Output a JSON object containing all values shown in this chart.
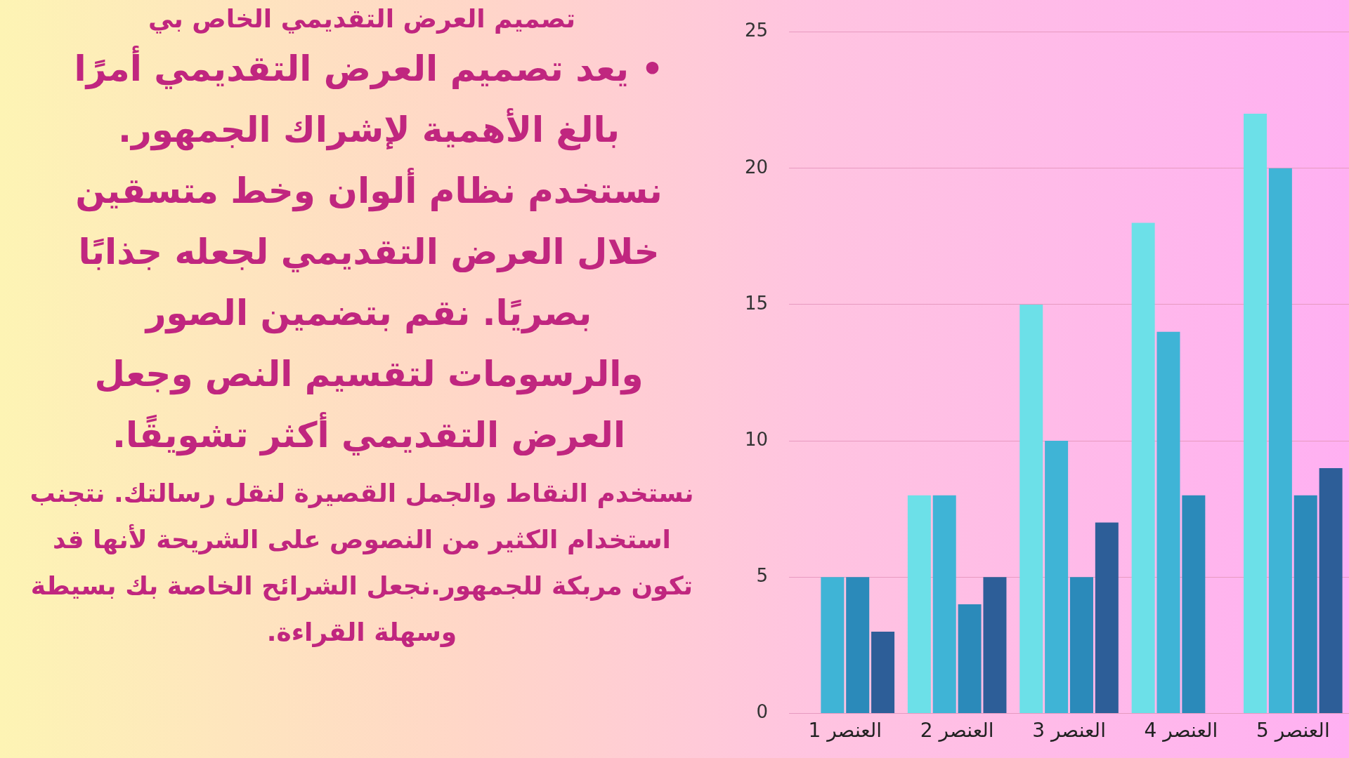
{
  "chart_data": {
    "type": "bar",
    "title": "تصميم العرض التقديمي الخاص بي",
    "annotations": [
      "• يعد تصميم العرض التقديمي أمرًا بالغ الأهمية لإشراك الجمهور. نستخدم نظام ألوان وخط متسقين خلال العرض التقديمي لجعله جذابًا بصريًا. نقم بتضمين الصور والرسومات لتقسيم النص وجعل العرض التقديمي أكثر تشويقًا.",
      "نستخدم النقاط والجمل القصيرة لنقل رسالتك. نتجنب استخدام الكثير من النصوص على الشريحة لأنها قد تكون مربكة للجمهور.نجعل الشرائح الخاصة بك بسيطة وسهلة القراءة."
    ],
    "categories": [
      "العنصر 1",
      "العنصر 2",
      "العنصر 3",
      "العنصر 4",
      "العنصر 5"
    ],
    "series": [
      {
        "color": "#6ce0e8",
        "values": [
          null,
          8,
          15,
          18,
          22
        ]
      },
      {
        "color": "#3fb4d6",
        "values": [
          5,
          8,
          10,
          14,
          20
        ]
      },
      {
        "color": "#2b8aba",
        "values": [
          5,
          4,
          5,
          8,
          8
        ]
      },
      {
        "color": "#2d5e98",
        "values": [
          3,
          5,
          7,
          null,
          9
        ]
      }
    ],
    "ylim": [
      0,
      25
    ],
    "yticks": [
      0,
      5,
      10,
      15,
      20,
      25
    ],
    "grid": "y",
    "legend": false
  }
}
